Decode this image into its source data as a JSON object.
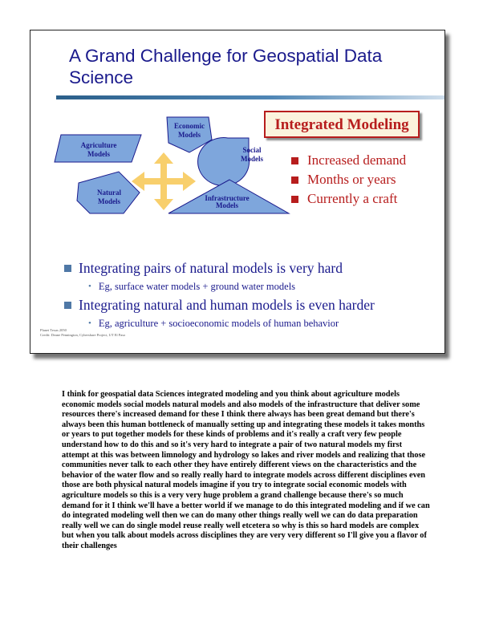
{
  "slide": {
    "title": "A Grand Challenge for Geospatial Data Science",
    "diagram": {
      "economic": [
        "Economic",
        "Models"
      ],
      "agriculture": [
        "Agriculture",
        "Models"
      ],
      "social": [
        "Social",
        "Models"
      ],
      "natural": [
        "Natural",
        "Models"
      ],
      "infrastructure": [
        "Infrastructure",
        "Models"
      ]
    },
    "integrated_modeling": "Integrated Modeling",
    "red_bullets": [
      "Increased demand",
      "Months or years",
      "Currently a craft"
    ],
    "bullets": [
      {
        "text": "Integrating pairs of natural models is very hard",
        "sub": "Eg, surface water models + ground water models"
      },
      {
        "text": "Integrating natural and human models is even harder",
        "sub": "Eg, agriculture + socioeconomic models of human behavior"
      }
    ],
    "credits": [
      "Planet Texas 2050",
      "Credit: Deane Pennington, Cybershare Project, UT El Paso"
    ]
  },
  "transcript": "I think for geospatial data Sciences integrated modeling and you think about agriculture models economic models social models natural models and also models of the infrastructure that deliver some resources there's increased demand for these I think there always has been great demand but there's always been this human bottleneck of manually setting up and integrating these models it takes months or years to put together models for these kinds of problems and it's really a craft very few people understand how to do this and so it's very hard to integrate a pair of two natural models my first attempt at this was between limnology and hydrology so lakes and river models and realizing that those communities never talk to each other they have entirely different views on the characteristics and the behavior of the water flow and so really really hard to integrate models across different disciplines even those are both physical natural models imagine if you try to integrate social economic models with agriculture models so this is a very very huge problem a grand challenge because there's so much demand for it I think we'll have a better world if we manage to do this integrated modeling and if we can do integrated modeling well then we can do many other things really well we can do data preparation really well we can do single model reuse really well etcetera so why is this so hard models are complex but when you talk about models across disciplines they are very very different so I'll give you a flavor of their challenges",
  "colors": {
    "title_blue": "#1a1a8c",
    "accent_red": "#b71d1d",
    "shape_fill": "#7ea6dc",
    "arrow_gold": "#f8cf6c"
  }
}
